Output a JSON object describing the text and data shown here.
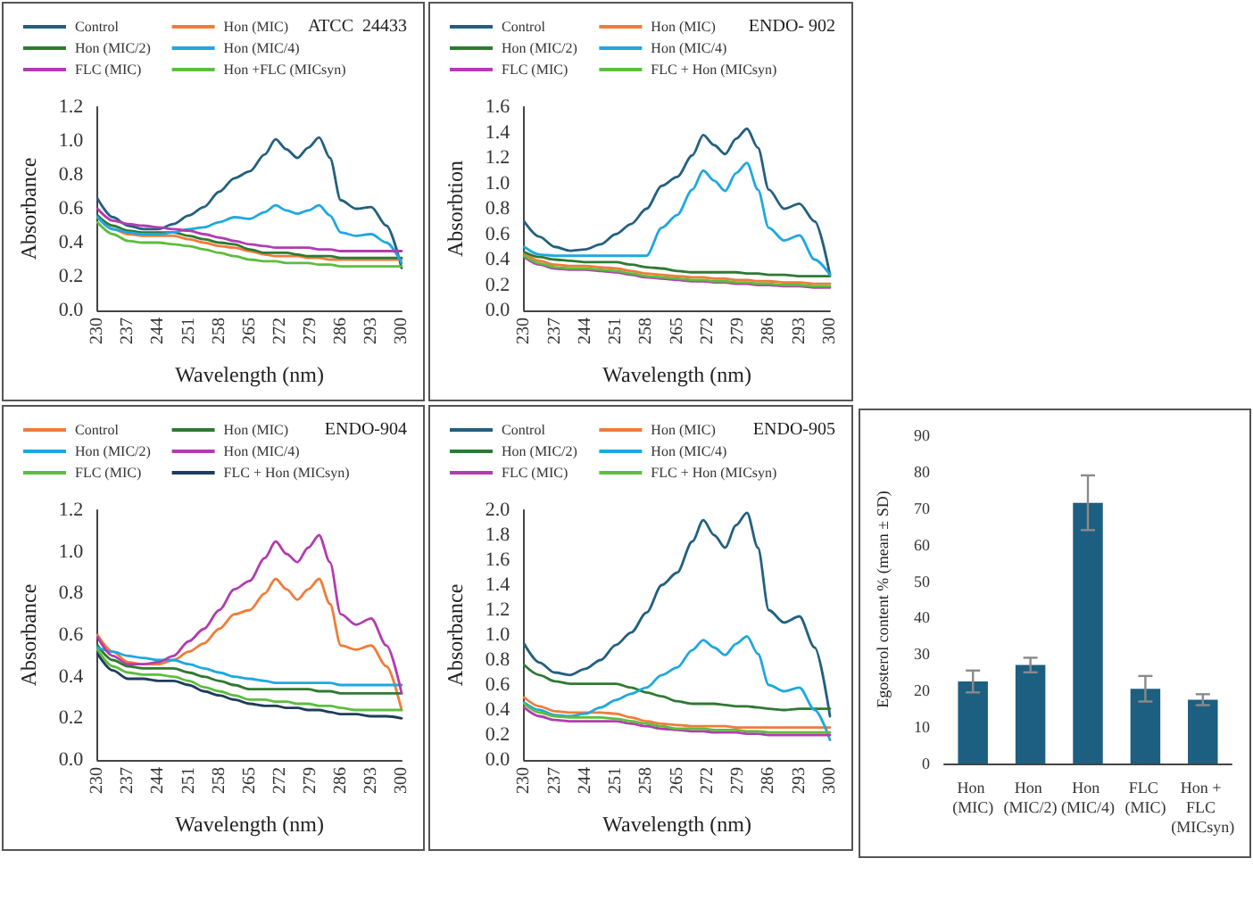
{
  "chart_data": [
    {
      "type": "line",
      "title": "ATCC  24433",
      "xlabel": "Wavelength (nm)",
      "ylabel": "Absorbance",
      "legend": "top",
      "marker": "none",
      "x": [
        230,
        233.5,
        237,
        240.5,
        244,
        247.5,
        251,
        254.5,
        258,
        261.5,
        265,
        268.5,
        271,
        273.5,
        276,
        278.5,
        281,
        283.5,
        286,
        289.5,
        293,
        296.5,
        300
      ],
      "xlim": [
        230,
        300
      ],
      "xticks": [
        230,
        237,
        244,
        251,
        258,
        265,
        272,
        279,
        286,
        293,
        300
      ],
      "ylim": [
        0,
        1.2
      ],
      "yticks": [
        {
          "value": 0,
          "label": "0.0"
        },
        {
          "value": 0.2,
          "label": "0.2"
        },
        {
          "value": 0.4,
          "label": "0.4"
        },
        {
          "value": 0.6,
          "label": "0.6"
        },
        {
          "value": 0.8,
          "label": "0.8"
        },
        {
          "value": 1,
          "label": "1.0"
        },
        {
          "value": 1.2,
          "label": "1.2"
        }
      ],
      "series": [
        {
          "name": "Control",
          "color": "#23607f",
          "values": [
            0.66,
            0.55,
            0.5,
            0.48,
            0.48,
            0.51,
            0.56,
            0.61,
            0.7,
            0.78,
            0.82,
            0.92,
            1.01,
            0.95,
            0.9,
            0.96,
            1.02,
            0.9,
            0.65,
            0.6,
            0.61,
            0.5,
            0.25
          ]
        },
        {
          "name": "Hon (MIC)",
          "color": "#f07c3a",
          "values": [
            0.55,
            0.48,
            0.45,
            0.44,
            0.44,
            0.44,
            0.42,
            0.4,
            0.38,
            0.37,
            0.35,
            0.33,
            0.32,
            0.32,
            0.32,
            0.31,
            0.31,
            0.3,
            0.3,
            0.3,
            0.3,
            0.3,
            0.3
          ]
        },
        {
          "name": "Hon (MIC/2)",
          "color": "#2e7a33",
          "values": [
            0.56,
            0.5,
            0.47,
            0.46,
            0.46,
            0.46,
            0.44,
            0.42,
            0.4,
            0.39,
            0.36,
            0.34,
            0.34,
            0.34,
            0.33,
            0.32,
            0.32,
            0.32,
            0.31,
            0.31,
            0.31,
            0.31,
            0.31
          ]
        },
        {
          "name": "Hon (MIC/4)",
          "color": "#1ea8e0",
          "values": [
            0.55,
            0.48,
            0.46,
            0.45,
            0.45,
            0.46,
            0.48,
            0.49,
            0.52,
            0.55,
            0.54,
            0.58,
            0.62,
            0.59,
            0.57,
            0.59,
            0.62,
            0.56,
            0.46,
            0.44,
            0.45,
            0.4,
            0.28
          ]
        },
        {
          "name": "FLC (MIC)",
          "color": "#b23cb0",
          "values": [
            0.6,
            0.53,
            0.51,
            0.5,
            0.49,
            0.48,
            0.47,
            0.45,
            0.43,
            0.41,
            0.39,
            0.38,
            0.37,
            0.37,
            0.37,
            0.37,
            0.36,
            0.36,
            0.35,
            0.35,
            0.35,
            0.35,
            0.35
          ]
        },
        {
          "name": "Hon +FLC (MICsyn)",
          "color": "#5dbd3e",
          "values": [
            0.52,
            0.45,
            0.41,
            0.4,
            0.4,
            0.39,
            0.38,
            0.36,
            0.34,
            0.32,
            0.3,
            0.29,
            0.29,
            0.28,
            0.28,
            0.28,
            0.27,
            0.27,
            0.26,
            0.26,
            0.26,
            0.26,
            0.26
          ]
        }
      ]
    },
    {
      "type": "line",
      "title": "ENDO- 902",
      "xlabel": "Wavelength (nm)",
      "ylabel": "Absorbtion",
      "legend": "top",
      "marker": "none",
      "x": [
        230,
        233.5,
        237,
        240.5,
        244,
        247.5,
        251,
        254.5,
        258,
        261.5,
        265,
        268.5,
        271,
        273.5,
        276,
        278.5,
        281,
        283.5,
        286,
        289.5,
        293,
        296.5,
        300
      ],
      "xlim": [
        230,
        300
      ],
      "xticks": [
        230,
        237,
        244,
        251,
        258,
        265,
        272,
        279,
        286,
        293,
        300
      ],
      "ylim": [
        0,
        1.6
      ],
      "yticks": [
        {
          "value": 0,
          "label": "0.0"
        },
        {
          "value": 0.2,
          "label": "0.2"
        },
        {
          "value": 0.4,
          "label": "0.4"
        },
        {
          "value": 0.6,
          "label": "0.6"
        },
        {
          "value": 0.8,
          "label": "0.8"
        },
        {
          "value": 1,
          "label": "1.0"
        },
        {
          "value": 1.2,
          "label": "1.2"
        },
        {
          "value": 1.4,
          "label": "1.4"
        },
        {
          "value": 1.6,
          "label": "1.6"
        }
      ],
      "series": [
        {
          "name": "Control",
          "color": "#23607f",
          "values": [
            0.7,
            0.58,
            0.5,
            0.47,
            0.48,
            0.52,
            0.6,
            0.68,
            0.8,
            0.98,
            1.05,
            1.22,
            1.38,
            1.3,
            1.23,
            1.35,
            1.43,
            1.28,
            0.95,
            0.8,
            0.84,
            0.7,
            0.28
          ]
        },
        {
          "name": "Hon (MIC)",
          "color": "#f07c3a",
          "values": [
            0.45,
            0.39,
            0.36,
            0.35,
            0.35,
            0.34,
            0.33,
            0.31,
            0.29,
            0.28,
            0.27,
            0.26,
            0.26,
            0.25,
            0.25,
            0.24,
            0.24,
            0.23,
            0.23,
            0.22,
            0.22,
            0.21,
            0.21
          ]
        },
        {
          "name": "Hon (MIC/2)",
          "color": "#2e7a33",
          "values": [
            0.46,
            0.42,
            0.4,
            0.39,
            0.38,
            0.38,
            0.38,
            0.36,
            0.34,
            0.33,
            0.31,
            0.3,
            0.3,
            0.3,
            0.3,
            0.3,
            0.29,
            0.29,
            0.28,
            0.28,
            0.27,
            0.27,
            0.27
          ]
        },
        {
          "name": "Hon (MIC/4)",
          "color": "#1ea8e0",
          "values": [
            0.5,
            0.44,
            0.43,
            0.43,
            0.43,
            0.43,
            0.43,
            0.43,
            0.43,
            0.65,
            0.75,
            0.95,
            1.1,
            1.02,
            0.94,
            1.08,
            1.16,
            0.95,
            0.65,
            0.55,
            0.59,
            0.4,
            0.28
          ]
        },
        {
          "name": "FLC (MIC)",
          "color": "#b23cb0",
          "values": [
            0.42,
            0.36,
            0.33,
            0.32,
            0.32,
            0.31,
            0.3,
            0.28,
            0.26,
            0.25,
            0.24,
            0.23,
            0.23,
            0.22,
            0.22,
            0.21,
            0.21,
            0.2,
            0.2,
            0.19,
            0.19,
            0.18,
            0.18
          ]
        },
        {
          "name": "FLC + Hon (MICsyn)",
          "color": "#5dbd3e",
          "values": [
            0.43,
            0.37,
            0.34,
            0.33,
            0.33,
            0.32,
            0.31,
            0.29,
            0.27,
            0.26,
            0.25,
            0.24,
            0.24,
            0.23,
            0.23,
            0.22,
            0.22,
            0.21,
            0.21,
            0.2,
            0.2,
            0.19,
            0.19
          ]
        }
      ]
    },
    {
      "type": "line",
      "title": "ENDO-904",
      "xlabel": "Wavelength (nm)",
      "ylabel": "Absorbance",
      "legend": "top",
      "marker": "none",
      "x": [
        230,
        233.5,
        237,
        240.5,
        244,
        247.5,
        251,
        254.5,
        258,
        261.5,
        265,
        268.5,
        271,
        273.5,
        276,
        278.5,
        281,
        283.5,
        286,
        289.5,
        293,
        296.5,
        300
      ],
      "xlim": [
        230,
        300
      ],
      "xticks": [
        230,
        237,
        244,
        251,
        258,
        265,
        272,
        279,
        286,
        293,
        300
      ],
      "ylim": [
        0,
        1.2
      ],
      "yticks": [
        {
          "value": 0,
          "label": "0.0"
        },
        {
          "value": 0.2,
          "label": "0.2"
        },
        {
          "value": 0.4,
          "label": "0.4"
        },
        {
          "value": 0.6,
          "label": "0.6"
        },
        {
          "value": 0.8,
          "label": "0.8"
        },
        {
          "value": 1,
          "label": "1.0"
        },
        {
          "value": 1.2,
          "label": "1.2"
        }
      ],
      "series": [
        {
          "name": "Control",
          "color": "#f07c3a",
          "values": [
            0.6,
            0.52,
            0.47,
            0.46,
            0.46,
            0.48,
            0.52,
            0.56,
            0.63,
            0.7,
            0.72,
            0.8,
            0.87,
            0.82,
            0.77,
            0.82,
            0.87,
            0.75,
            0.55,
            0.53,
            0.55,
            0.45,
            0.24
          ]
        },
        {
          "name": "Hon (MIC)",
          "color": "#2e7a33",
          "values": [
            0.55,
            0.48,
            0.45,
            0.44,
            0.44,
            0.44,
            0.42,
            0.4,
            0.38,
            0.36,
            0.34,
            0.34,
            0.34,
            0.34,
            0.34,
            0.34,
            0.33,
            0.33,
            0.32,
            0.32,
            0.32,
            0.32,
            0.32
          ]
        },
        {
          "name": "Hon (MIC/2)",
          "color": "#1ea8e0",
          "values": [
            0.54,
            0.52,
            0.5,
            0.49,
            0.48,
            0.48,
            0.46,
            0.44,
            0.42,
            0.4,
            0.39,
            0.38,
            0.37,
            0.37,
            0.37,
            0.37,
            0.37,
            0.37,
            0.36,
            0.36,
            0.36,
            0.36,
            0.36
          ]
        },
        {
          "name": "Hon (MIC/4)",
          "color": "#b23cb0",
          "values": [
            0.59,
            0.5,
            0.46,
            0.46,
            0.47,
            0.5,
            0.57,
            0.63,
            0.72,
            0.82,
            0.86,
            0.97,
            1.05,
            0.99,
            0.95,
            1.02,
            1.08,
            0.95,
            0.7,
            0.65,
            0.68,
            0.55,
            0.32
          ]
        },
        {
          "name": "FLC (MIC)",
          "color": "#5dbd3e",
          "values": [
            0.53,
            0.45,
            0.42,
            0.41,
            0.41,
            0.4,
            0.38,
            0.35,
            0.33,
            0.31,
            0.29,
            0.29,
            0.28,
            0.28,
            0.27,
            0.27,
            0.26,
            0.26,
            0.25,
            0.24,
            0.24,
            0.24,
            0.24
          ]
        },
        {
          "name": "FLC + Hon (MICsyn)",
          "color": "#1e3d5c",
          "values": [
            0.51,
            0.43,
            0.39,
            0.39,
            0.38,
            0.38,
            0.36,
            0.33,
            0.31,
            0.29,
            0.27,
            0.26,
            0.26,
            0.25,
            0.25,
            0.24,
            0.24,
            0.23,
            0.22,
            0.22,
            0.21,
            0.21,
            0.2
          ]
        }
      ]
    },
    {
      "type": "line",
      "title": "ENDO-905",
      "xlabel": "Wavelength (nm)",
      "ylabel": "Absorbance",
      "legend": "top",
      "marker": "none",
      "x": [
        230,
        233.5,
        237,
        240.5,
        244,
        247.5,
        251,
        254.5,
        258,
        261.5,
        265,
        268.5,
        271,
        273.5,
        276,
        278.5,
        281,
        283.5,
        286,
        289.5,
        293,
        296.5,
        300
      ],
      "xlim": [
        230,
        300
      ],
      "xticks": [
        230,
        237,
        244,
        251,
        258,
        265,
        272,
        279,
        286,
        293,
        300
      ],
      "ylim": [
        0,
        2
      ],
      "yticks": [
        {
          "value": 0,
          "label": "0.0"
        },
        {
          "value": 0.2,
          "label": "0.2"
        },
        {
          "value": 0.4,
          "label": "0.4"
        },
        {
          "value": 0.6,
          "label": "0.6"
        },
        {
          "value": 0.8,
          "label": "0.8"
        },
        {
          "value": 1,
          "label": "1.0"
        },
        {
          "value": 1.2,
          "label": "1.2"
        },
        {
          "value": 1.4,
          "label": "1.4"
        },
        {
          "value": 1.6,
          "label": "1.6"
        },
        {
          "value": 1.8,
          "label": "1.8"
        },
        {
          "value": 2,
          "label": "2.0"
        }
      ],
      "series": [
        {
          "name": "Control",
          "color": "#23607f",
          "values": [
            0.93,
            0.78,
            0.7,
            0.68,
            0.73,
            0.8,
            0.92,
            1.02,
            1.18,
            1.4,
            1.5,
            1.75,
            1.92,
            1.8,
            1.7,
            1.88,
            1.98,
            1.7,
            1.2,
            1.1,
            1.15,
            0.9,
            0.35
          ]
        },
        {
          "name": "Hon (MIC)",
          "color": "#f07c3a",
          "values": [
            0.5,
            0.43,
            0.39,
            0.38,
            0.38,
            0.38,
            0.37,
            0.34,
            0.31,
            0.29,
            0.28,
            0.27,
            0.27,
            0.27,
            0.27,
            0.26,
            0.26,
            0.26,
            0.26,
            0.26,
            0.26,
            0.26,
            0.26
          ]
        },
        {
          "name": "Hon (MIC/2)",
          "color": "#2e7a33",
          "values": [
            0.76,
            0.68,
            0.63,
            0.61,
            0.61,
            0.61,
            0.61,
            0.58,
            0.54,
            0.51,
            0.47,
            0.45,
            0.45,
            0.45,
            0.44,
            0.43,
            0.43,
            0.42,
            0.41,
            0.4,
            0.41,
            0.41,
            0.41
          ]
        },
        {
          "name": "Hon (MIC/4)",
          "color": "#1ea8e0",
          "values": [
            0.46,
            0.4,
            0.36,
            0.35,
            0.37,
            0.42,
            0.48,
            0.53,
            0.58,
            0.68,
            0.74,
            0.88,
            0.96,
            0.9,
            0.84,
            0.93,
            0.99,
            0.85,
            0.6,
            0.55,
            0.58,
            0.4,
            0.16
          ]
        },
        {
          "name": "FLC (MIC)",
          "color": "#b23cb0",
          "values": [
            0.42,
            0.35,
            0.32,
            0.31,
            0.31,
            0.31,
            0.31,
            0.29,
            0.27,
            0.25,
            0.24,
            0.23,
            0.23,
            0.22,
            0.22,
            0.22,
            0.21,
            0.21,
            0.2,
            0.2,
            0.2,
            0.2,
            0.2
          ]
        },
        {
          "name": "FLC + Hon (MICsyn)",
          "color": "#5dbd3e",
          "values": [
            0.45,
            0.38,
            0.35,
            0.34,
            0.34,
            0.34,
            0.33,
            0.31,
            0.29,
            0.27,
            0.25,
            0.25,
            0.25,
            0.24,
            0.24,
            0.24,
            0.23,
            0.23,
            0.22,
            0.22,
            0.22,
            0.22,
            0.22
          ]
        }
      ]
    },
    {
      "type": "bar",
      "ylabel": "Egosterol content % (mean ± SD)",
      "color": "#1d5f80",
      "categories": [
        "Hon (MIC)",
        "Hon (MIC/2)",
        "Hon (MIC/4)",
        "FLC (MIC)",
        "Hon + FLC (MICsyn)"
      ],
      "values": [
        22.5,
        27,
        71.5,
        20.5,
        17.5
      ],
      "errors": [
        3,
        2,
        7.5,
        3.5,
        1.5
      ],
      "ylim": [
        0,
        90
      ],
      "yticks": [
        0,
        10,
        20,
        30,
        40,
        50,
        60,
        70,
        80,
        90
      ]
    }
  ]
}
